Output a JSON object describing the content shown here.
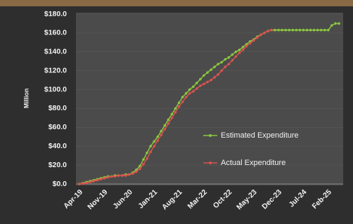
{
  "chart_data": {
    "type": "line",
    "y_label": "Million",
    "categories": [
      "Apr-19",
      null,
      null,
      null,
      null,
      null,
      null,
      "Nov-19",
      null,
      null,
      null,
      null,
      null,
      null,
      "Jun-20",
      null,
      null,
      null,
      null,
      null,
      null,
      "Jan-21",
      null,
      null,
      null,
      null,
      null,
      null,
      "Aug-21",
      null,
      null,
      null,
      null,
      null,
      null,
      "Mar-22",
      null,
      null,
      null,
      null,
      null,
      null,
      "Oct-22",
      null,
      null,
      null,
      null,
      null,
      null,
      "May-23",
      null,
      null,
      null,
      null,
      null,
      null,
      "Dec-23",
      null,
      null,
      null,
      null,
      null,
      null,
      "Jul-24",
      null,
      null,
      null,
      null,
      null,
      null,
      "Feb-25",
      null,
      null,
      null
    ],
    "series": [
      {
        "name": "Estimated Expenditure",
        "color": "#8cc63f",
        "values": [
          0,
          1,
          2,
          3,
          4,
          5,
          6,
          7,
          8,
          8,
          9,
          9,
          9,
          10,
          10,
          12,
          15,
          19,
          26,
          33,
          40,
          45,
          50,
          56,
          62,
          68,
          74,
          80,
          86,
          92,
          96,
          100,
          103,
          107,
          111,
          115,
          118,
          121,
          124,
          127,
          129,
          132,
          134,
          137,
          140,
          142,
          145,
          148,
          151,
          153,
          156,
          158,
          160,
          162,
          163,
          163,
          163,
          163,
          163,
          163,
          163,
          163,
          163,
          163,
          163,
          163,
          163,
          163,
          163,
          163,
          163,
          168,
          170,
          170
        ]
      },
      {
        "name": "Actual Expenditure",
        "color": "#d9534f",
        "values": [
          0,
          0.5,
          1,
          2,
          3,
          4,
          5,
          6,
          7,
          8,
          8,
          9,
          9,
          9,
          10,
          11,
          13,
          16,
          21,
          27,
          34,
          40,
          46,
          52,
          58,
          64,
          70,
          76,
          82,
          87,
          92,
          96,
          98,
          101,
          104,
          106,
          108,
          110,
          113,
          116,
          120,
          124,
          127,
          131,
          135,
          139,
          142,
          146,
          149,
          152,
          155,
          158,
          160,
          162,
          163,
          null,
          null,
          null,
          null,
          null,
          null,
          null,
          null,
          null,
          null,
          null,
          null,
          null,
          null,
          null,
          null,
          null,
          null,
          null
        ]
      }
    ],
    "ylim": [
      0,
      180
    ],
    "yticks": [
      {
        "value": 0,
        "label": "$0.0"
      },
      {
        "value": 20,
        "label": "$20.0"
      },
      {
        "value": 40,
        "label": "$40.0"
      },
      {
        "value": 60,
        "label": "$60.0"
      },
      {
        "value": 80,
        "label": "$80.0"
      },
      {
        "value": 100,
        "label": "$100.0"
      },
      {
        "value": 120,
        "label": "$120.0"
      },
      {
        "value": 140,
        "label": "$140.0"
      },
      {
        "value": 160,
        "label": "$160.0"
      },
      {
        "value": 180,
        "label": "$180.0"
      }
    ],
    "grid": true
  }
}
